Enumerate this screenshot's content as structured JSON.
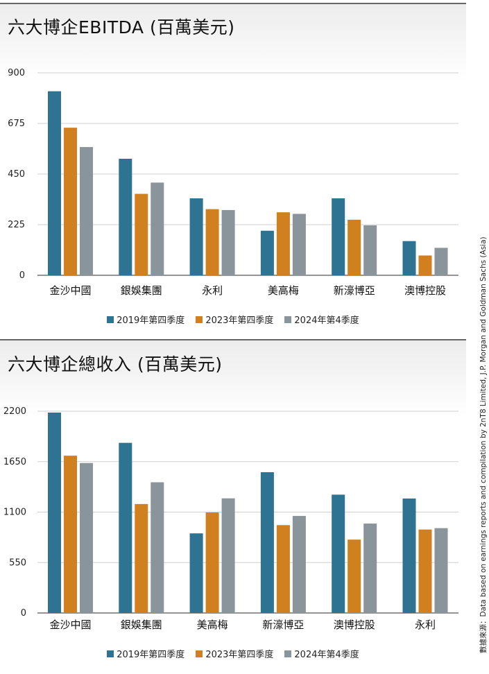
{
  "colors": {
    "s2019": "#2e7391",
    "s2023": "#d0801f",
    "s2024": "#8a949b"
  },
  "source": "數據來源：Data based on earnings reports and compilation by 2nT8 Limited, J.P. Morgan and Goldman Sachs (Asia)",
  "chart_data": [
    {
      "type": "bar",
      "title": "六大博企EBITDA (百萬美元)",
      "ylim": [
        0,
        900
      ],
      "yticks": [
        "0",
        "225",
        "450",
        "675",
        "900"
      ],
      "categories": [
        "金沙中國",
        "銀娛集團",
        "永利",
        "美高梅",
        "新濠博亞",
        "澳博控股"
      ],
      "series": [
        {
          "name": "2019年第四季度",
          "values": [
            818,
            518,
            342,
            198,
            342,
            152
          ]
        },
        {
          "name": "2023年第四季度",
          "values": [
            656,
            362,
            294,
            280,
            247,
            88
          ]
        },
        {
          "name": "2024年第4季度",
          "values": [
            570,
            412,
            290,
            273,
            222,
            122
          ]
        }
      ],
      "grid": true,
      "legend": "bottom"
    },
    {
      "type": "bar",
      "title": "六大博企總收入 (百萬美元)",
      "ylim": [
        0,
        2200
      ],
      "yticks": [
        "0",
        "550",
        "1100",
        "1650",
        "2200"
      ],
      "categories": [
        "金沙中國",
        "銀娛集團",
        "美高梅",
        "新濠博亞",
        "澳博控股",
        "永利"
      ],
      "series": [
        {
          "name": "2019年第四季度",
          "values": [
            2185,
            1855,
            868,
            1535,
            1290,
            1248
          ]
        },
        {
          "name": "2023年第四季度",
          "values": [
            1715,
            1188,
            1096,
            958,
            800,
            910
          ]
        },
        {
          "name": "2024年第4季度",
          "values": [
            1635,
            1425,
            1250,
            1058,
            975,
            925
          ]
        }
      ],
      "grid": true,
      "legend": "bottom"
    }
  ]
}
